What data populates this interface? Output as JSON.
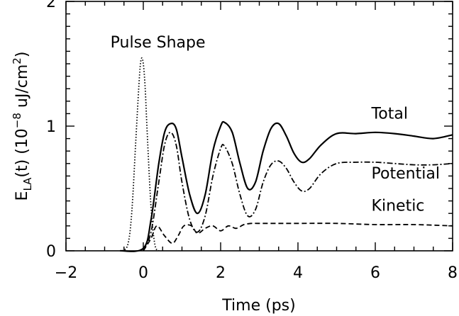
{
  "chart_data": {
    "type": "line",
    "title": "",
    "xlabel": "Time (ps)",
    "ylabel": {
      "prefix": "E",
      "sub": "LA",
      "mid": "(t)  (10",
      "sup": "−8",
      "unit": " uJ/cm",
      "unit_sup": "2",
      "end": ")"
    },
    "xlim": [
      -2,
      8
    ],
    "ylim": [
      0,
      2
    ],
    "x_ticks": [
      {
        "value": -2,
        "label": "−2"
      },
      {
        "value": 0,
        "label": "0"
      },
      {
        "value": 2,
        "label": "2"
      },
      {
        "value": 4,
        "label": "4"
      },
      {
        "value": 6,
        "label": "6"
      },
      {
        "value": 8,
        "label": "8"
      }
    ],
    "y_ticks": [
      {
        "value": 0,
        "label": "0"
      },
      {
        "value": 1,
        "label": "1"
      },
      {
        "value": 2,
        "label": "2"
      }
    ],
    "grid": false,
    "series": [
      {
        "name": "Total",
        "style": "solid",
        "x": [
          -0.6,
          0.0,
          0.2,
          0.4,
          0.55,
          0.7,
          0.85,
          1.0,
          1.2,
          1.4,
          1.6,
          1.8,
          2.0,
          2.1,
          2.3,
          2.5,
          2.7,
          2.9,
          3.1,
          3.3,
          3.5,
          3.7,
          3.9,
          4.1,
          4.3,
          4.6,
          5.0,
          5.5,
          6.0,
          6.5,
          7.0,
          7.5,
          8.0
        ],
        "y": [
          0.0,
          0.02,
          0.25,
          0.7,
          0.95,
          1.02,
          0.98,
          0.75,
          0.45,
          0.3,
          0.45,
          0.8,
          1.0,
          1.03,
          0.95,
          0.7,
          0.5,
          0.55,
          0.8,
          0.98,
          1.02,
          0.92,
          0.78,
          0.71,
          0.74,
          0.85,
          0.94,
          0.94,
          0.95,
          0.94,
          0.92,
          0.9,
          0.93
        ]
      },
      {
        "name": "Potential",
        "style": "dashdot",
        "x": [
          0.0,
          0.2,
          0.4,
          0.55,
          0.7,
          0.85,
          1.0,
          1.2,
          1.4,
          1.6,
          1.8,
          2.0,
          2.1,
          2.3,
          2.5,
          2.7,
          2.9,
          3.1,
          3.3,
          3.5,
          3.7,
          3.9,
          4.1,
          4.3,
          4.6,
          5.0,
          5.5,
          6.0,
          6.5,
          7.0,
          7.5,
          8.0
        ],
        "y": [
          0.0,
          0.15,
          0.55,
          0.85,
          0.95,
          0.85,
          0.55,
          0.25,
          0.15,
          0.28,
          0.6,
          0.82,
          0.84,
          0.7,
          0.45,
          0.28,
          0.33,
          0.55,
          0.69,
          0.72,
          0.66,
          0.55,
          0.48,
          0.5,
          0.62,
          0.7,
          0.71,
          0.71,
          0.7,
          0.69,
          0.69,
          0.7
        ]
      },
      {
        "name": "Kinetic",
        "style": "dashed",
        "x": [
          0.0,
          0.2,
          0.35,
          0.55,
          0.75,
          0.9,
          1.05,
          1.25,
          1.4,
          1.6,
          1.8,
          2.0,
          2.2,
          2.4,
          2.6,
          2.8,
          3.0,
          3.5,
          4.0,
          5.0,
          6.0,
          7.0,
          8.0
        ],
        "y": [
          0.0,
          0.1,
          0.2,
          0.12,
          0.06,
          0.12,
          0.2,
          0.2,
          0.14,
          0.18,
          0.2,
          0.16,
          0.2,
          0.18,
          0.21,
          0.22,
          0.22,
          0.22,
          0.22,
          0.22,
          0.21,
          0.21,
          0.2
        ]
      },
      {
        "name": "Pulse Shape",
        "style": "dotted",
        "x": [
          -0.55,
          -0.4,
          -0.3,
          -0.2,
          -0.1,
          -0.05,
          0.0,
          0.05,
          0.1,
          0.2,
          0.3,
          0.4
        ],
        "y": [
          0.0,
          0.05,
          0.3,
          0.85,
          1.4,
          1.54,
          1.5,
          1.3,
          0.95,
          0.35,
          0.05,
          0.0
        ]
      }
    ],
    "annotations": [
      {
        "text": "Pulse Shape",
        "x": -0.85,
        "y": 1.63
      },
      {
        "text": "Total",
        "x": 5.9,
        "y": 1.06
      },
      {
        "text": "Potential",
        "x": 5.9,
        "y": 0.58
      },
      {
        "text": "Kinetic",
        "x": 5.9,
        "y": 0.32
      }
    ]
  }
}
